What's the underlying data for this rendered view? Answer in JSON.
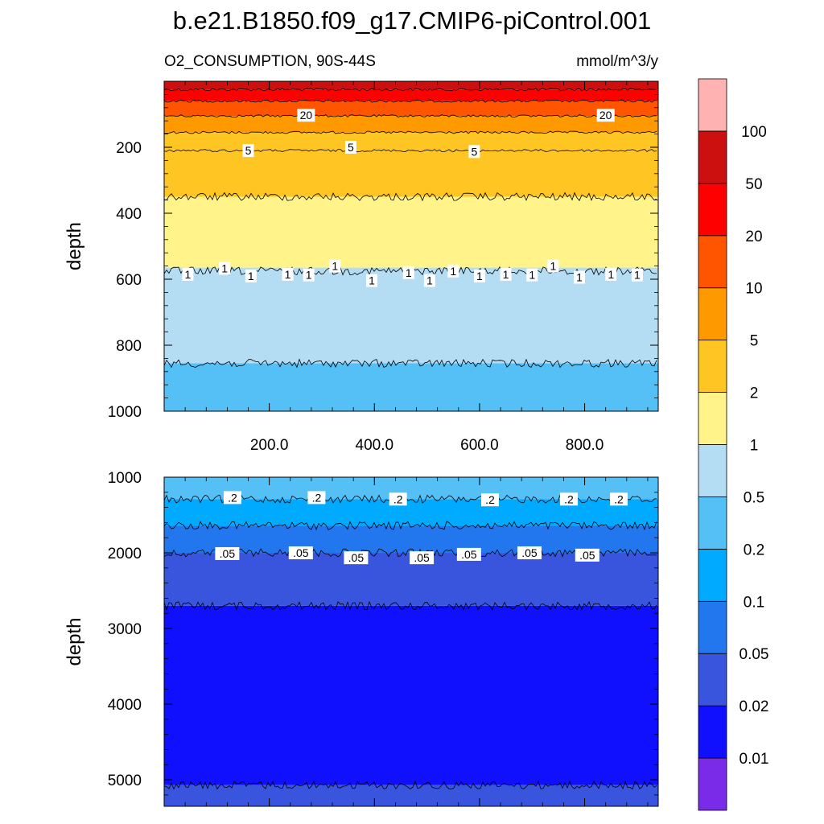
{
  "title": "b.e21.B1850.f09_g17.CMIP6-piControl.001",
  "chart_data": [
    {
      "type": "heatmap",
      "panel": "upper",
      "left_label": "O2_CONSUMPTION, 90S-44S",
      "right_label": "mmol/m^3/y",
      "ylabel": "depth",
      "xlabel": "",
      "xlim": [
        0,
        940
      ],
      "ylim": [
        1000,
        0
      ],
      "xticks": [
        200,
        400,
        600,
        800
      ],
      "xtick_labels": [
        "200.0",
        "400.0",
        "600.0",
        "800.0"
      ],
      "yticks": [
        200,
        400,
        600,
        800,
        1000
      ],
      "ytick_labels": [
        "200",
        "400",
        "600",
        "800",
        "1000"
      ],
      "bands": [
        {
          "from": 0,
          "to": 25,
          "color": "#cc1010"
        },
        {
          "from": 25,
          "to": 60,
          "color": "#ff0000"
        },
        {
          "from": 60,
          "to": 105,
          "color": "#ff5500"
        },
        {
          "from": 105,
          "to": 155,
          "color": "#ff9900"
        },
        {
          "from": 155,
          "to": 210,
          "color": "#ffc522"
        },
        {
          "from": 210,
          "to": 350,
          "color": "#ffc522"
        },
        {
          "from": 350,
          "to": 565,
          "color": "#fff38a"
        },
        {
          "from": 565,
          "to": 855,
          "color": "#b4dcf2"
        },
        {
          "from": 855,
          "to": 1000,
          "color": "#55c0f5"
        }
      ],
      "contours": [
        {
          "depth": 25,
          "label": ""
        },
        {
          "depth": 60,
          "label": ""
        },
        {
          "depth": 105,
          "label": "20"
        },
        {
          "depth": 155,
          "label": ""
        },
        {
          "depth": 210,
          "label": "5"
        },
        {
          "depth": 350,
          "label": ""
        },
        {
          "depth": 575,
          "label": "1"
        },
        {
          "depth": 855,
          "label": ""
        }
      ],
      "contour_labels": [
        {
          "text": "20",
          "x": 270,
          "depth": 103
        },
        {
          "text": "20",
          "x": 840,
          "depth": 103
        },
        {
          "text": "5",
          "x": 160,
          "depth": 210
        },
        {
          "text": "5",
          "x": 355,
          "depth": 200
        },
        {
          "text": "5",
          "x": 590,
          "depth": 213
        },
        {
          "text": "1",
          "x": 45,
          "depth": 585
        },
        {
          "text": "1",
          "x": 115,
          "depth": 567
        },
        {
          "text": "1",
          "x": 165,
          "depth": 590
        },
        {
          "text": "1",
          "x": 235,
          "depth": 585
        },
        {
          "text": "1",
          "x": 275,
          "depth": 587
        },
        {
          "text": "1",
          "x": 325,
          "depth": 560
        },
        {
          "text": "1",
          "x": 395,
          "depth": 604
        },
        {
          "text": "1",
          "x": 465,
          "depth": 580
        },
        {
          "text": "1",
          "x": 505,
          "depth": 604
        },
        {
          "text": "1",
          "x": 550,
          "depth": 575
        },
        {
          "text": "1",
          "x": 600,
          "depth": 590
        },
        {
          "text": "1",
          "x": 650,
          "depth": 585
        },
        {
          "text": "1",
          "x": 700,
          "depth": 587
        },
        {
          "text": "1",
          "x": 740,
          "depth": 560
        },
        {
          "text": "1",
          "x": 790,
          "depth": 594
        },
        {
          "text": "1",
          "x": 850,
          "depth": 585
        },
        {
          "text": "1",
          "x": 900,
          "depth": 587
        }
      ]
    },
    {
      "type": "heatmap",
      "panel": "lower",
      "ylabel": "depth",
      "xlabel": "",
      "xlim": [
        0,
        940
      ],
      "ylim": [
        5350,
        1000
      ],
      "xticks": [
        200,
        400,
        600,
        800
      ],
      "xtick_labels": [
        "",
        "",
        "",
        ""
      ],
      "yticks": [
        1000,
        2000,
        3000,
        4000,
        5000
      ],
      "ytick_labels": [
        "1000",
        "2000",
        "3000",
        "4000",
        "5000"
      ],
      "bands": [
        {
          "from": 1000,
          "to": 1290,
          "color": "#55c0f5"
        },
        {
          "from": 1290,
          "to": 1640,
          "color": "#00aaff"
        },
        {
          "from": 1640,
          "to": 2000,
          "color": "#2277ee"
        },
        {
          "from": 2000,
          "to": 2700,
          "color": "#3a55dd"
        },
        {
          "from": 2700,
          "to": 5070,
          "color": "#1010ff"
        },
        {
          "from": 5070,
          "to": 5350,
          "color": "#3a55dd"
        }
      ],
      "contours": [
        {
          "depth": 1290,
          "label": ".2"
        },
        {
          "depth": 1640,
          "label": ""
        },
        {
          "depth": 2000,
          "label": ".05"
        },
        {
          "depth": 2700,
          "label": ""
        },
        {
          "depth": 5070,
          "label": ""
        }
      ],
      "contour_labels": [
        {
          "text": ".2",
          "x": 130,
          "depth": 1270
        },
        {
          "text": ".2",
          "x": 290,
          "depth": 1270
        },
        {
          "text": ".2",
          "x": 445,
          "depth": 1290
        },
        {
          "text": ".2",
          "x": 620,
          "depth": 1300
        },
        {
          "text": ".2",
          "x": 770,
          "depth": 1290
        },
        {
          "text": ".2",
          "x": 865,
          "depth": 1290
        },
        {
          "text": ".05",
          "x": 120,
          "depth": 2010
        },
        {
          "text": ".05",
          "x": 260,
          "depth": 2000
        },
        {
          "text": ".05",
          "x": 365,
          "depth": 2065
        },
        {
          "text": ".05",
          "x": 490,
          "depth": 2065
        },
        {
          "text": ".05",
          "x": 580,
          "depth": 2020
        },
        {
          "text": ".05",
          "x": 695,
          "depth": 2000
        },
        {
          "text": ".05",
          "x": 805,
          "depth": 2030
        }
      ]
    },
    {
      "type": "colorbar",
      "levels": [
        "0.01",
        "0.02",
        "0.05",
        "0.1",
        "0.2",
        "0.5",
        "1",
        "2",
        "5",
        "10",
        "20",
        "50",
        "100"
      ],
      "colors": [
        "#7a2be8",
        "#1010ff",
        "#3a55dd",
        "#2277ee",
        "#00aaff",
        "#55c0f5",
        "#b4dcf2",
        "#fff38a",
        "#ffc522",
        "#ff9900",
        "#ff5500",
        "#ff0000",
        "#cc1010",
        "#ffb2b2"
      ]
    }
  ]
}
